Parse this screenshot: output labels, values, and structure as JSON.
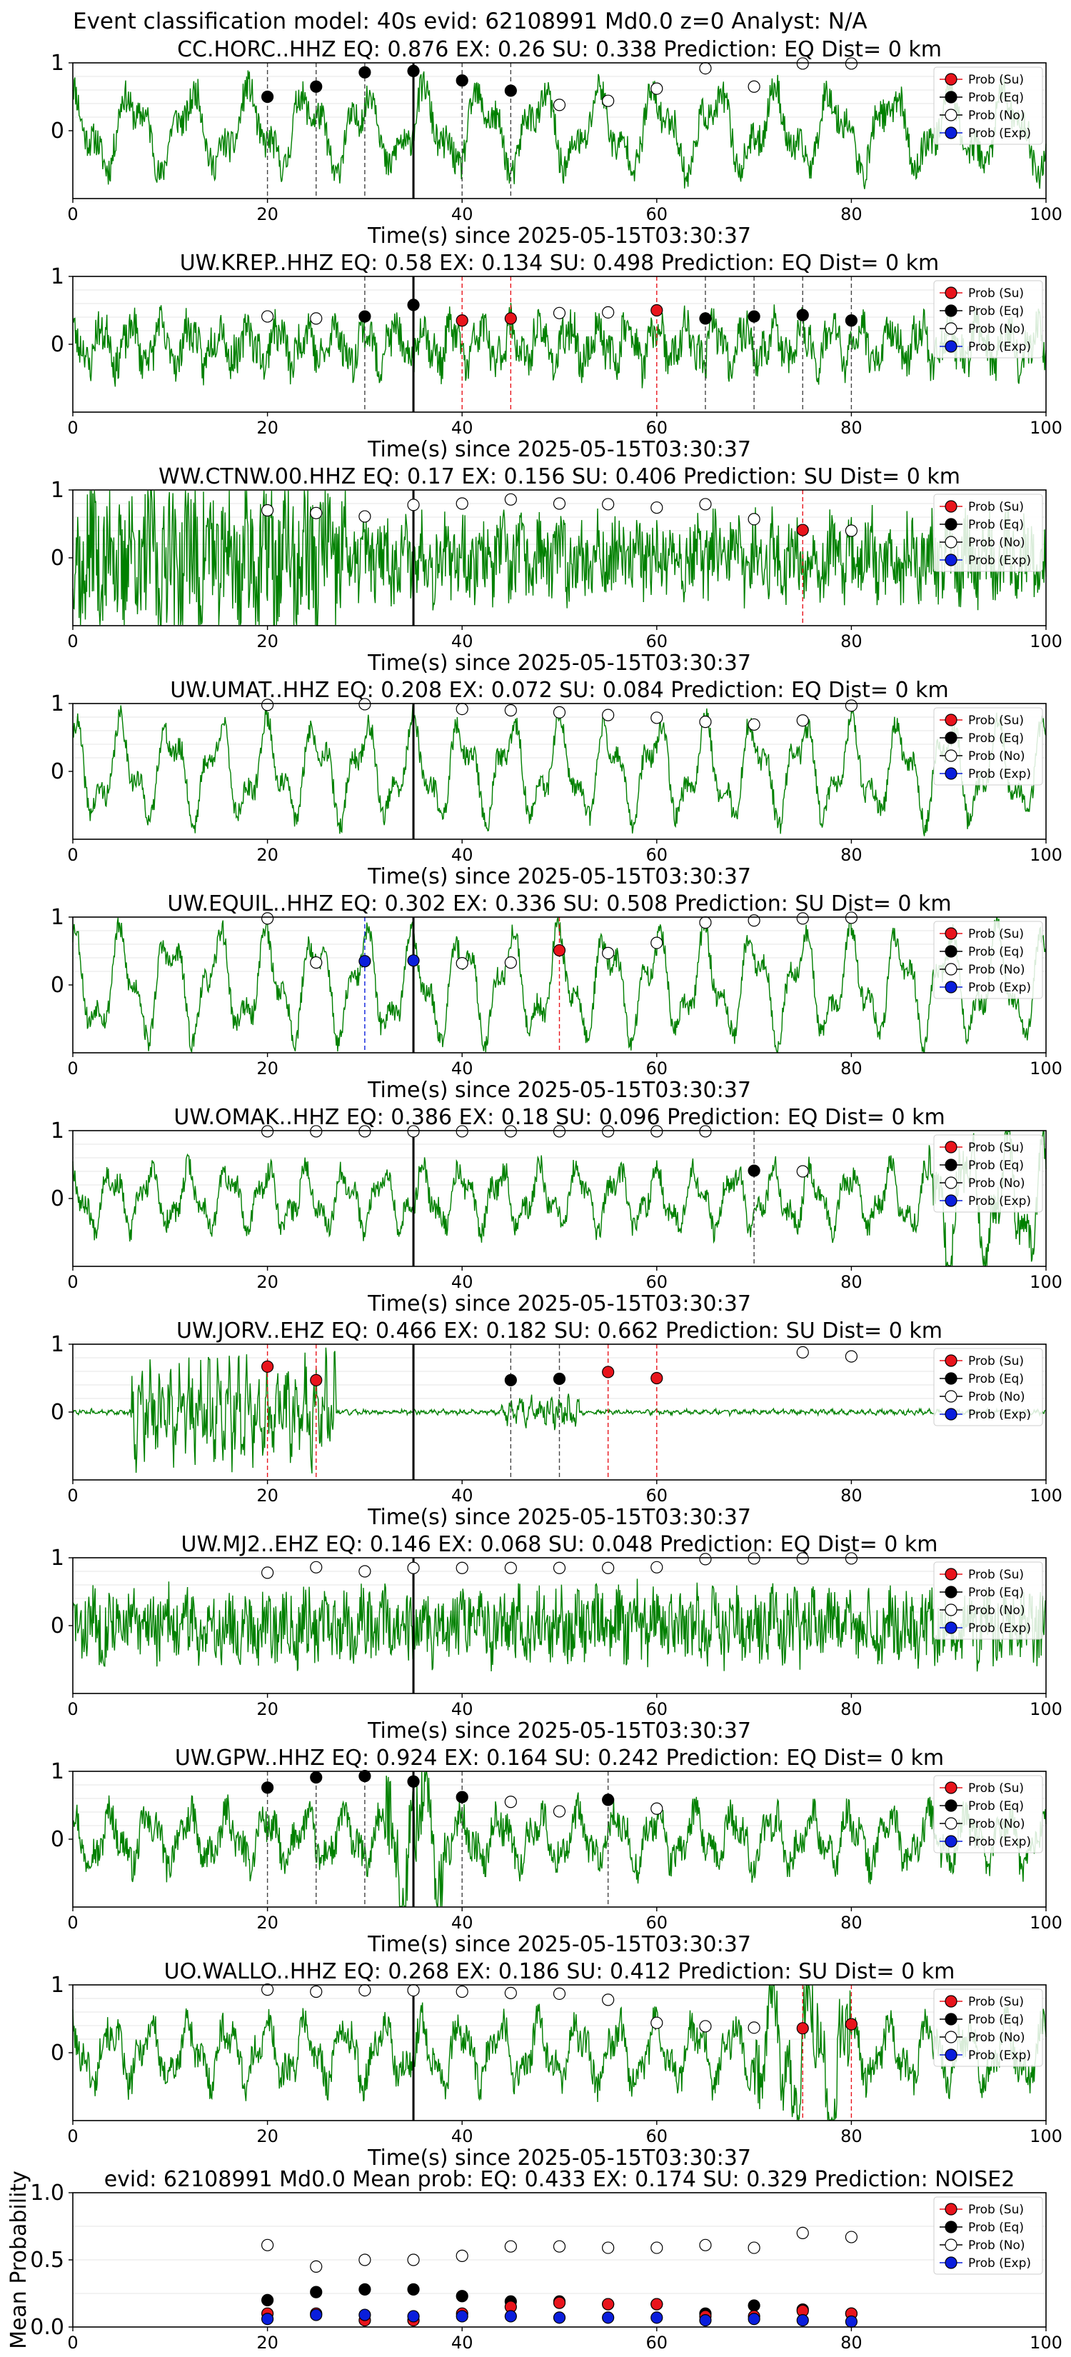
{
  "figure": {
    "suptitle": "Event classification model: 40s evid: 62108991 Md0.0 z=0 Analyst: N/A",
    "xlabel": "Time(s) since 2025-05-15T03:30:37",
    "legend_labels": [
      "Prob (Su)",
      "Prob (Eq)",
      "Prob (No)",
      "Prob (Exp)"
    ],
    "colors": {
      "waveform": "#008000",
      "su": "#e8141c",
      "eq": "#000000",
      "no": "#ffffff",
      "exp": "#0a1edc",
      "axes": "#000000"
    }
  },
  "chart_data": [
    {
      "type": "line",
      "title": "CC.HORC..HHZ   EQ: 0.876  EX: 0.26  SU: 0.338   Prediction: EQ    Dist= 0 km",
      "xlim": [
        0,
        100
      ],
      "ylim": [
        -1,
        1
      ],
      "xticks": [
        0,
        20,
        40,
        60,
        80,
        100
      ],
      "yticks": [
        0,
        1
      ],
      "pick_time": 35,
      "no_points": [
        [
          50,
          0.38
        ],
        [
          55,
          0.44
        ],
        [
          60,
          0.62
        ],
        [
          65,
          0.92
        ],
        [
          70,
          0.65
        ],
        [
          75,
          0.99
        ],
        [
          80,
          0.99
        ]
      ],
      "eq_points": [
        [
          20,
          0.5
        ],
        [
          25,
          0.65
        ],
        [
          30,
          0.86
        ],
        [
          35,
          0.88
        ],
        [
          40,
          0.74
        ],
        [
          45,
          0.59
        ]
      ],
      "su_points": [],
      "exp_points": [],
      "eq_lines": [
        20,
        25,
        30,
        40,
        45
      ],
      "su_lines": [],
      "exp_lines": [],
      "wave": {
        "seed": 11,
        "amp": 0.45,
        "period": 6,
        "noise": 0.3
      }
    },
    {
      "type": "line",
      "title": "UW.KREP..HHZ   EQ: 0.58  EX: 0.134  SU: 0.498   Prediction: EQ    Dist= 0 km",
      "xlim": [
        0,
        100
      ],
      "ylim": [
        -1,
        1
      ],
      "xticks": [
        0,
        20,
        40,
        60,
        80,
        100
      ],
      "yticks": [
        0,
        1
      ],
      "pick_time": 35,
      "no_points": [
        [
          20,
          0.41
        ],
        [
          25,
          0.38
        ],
        [
          50,
          0.46
        ],
        [
          55,
          0.47
        ]
      ],
      "eq_points": [
        [
          30,
          0.41
        ],
        [
          35,
          0.58
        ],
        [
          65,
          0.38
        ],
        [
          70,
          0.41
        ],
        [
          75,
          0.43
        ],
        [
          80,
          0.35
        ]
      ],
      "su_points": [
        [
          40,
          0.35
        ],
        [
          45,
          0.38
        ],
        [
          60,
          0.5
        ]
      ],
      "exp_points": [],
      "eq_lines": [
        30,
        65,
        70,
        75,
        80
      ],
      "su_lines": [
        40,
        45,
        60
      ],
      "exp_lines": [],
      "wave": {
        "seed": 23,
        "amp": 0.25,
        "period": 3,
        "noise": 0.35
      }
    },
    {
      "type": "line",
      "title": "WW.CTNW.00.HHZ   EQ: 0.17  EX: 0.156  SU: 0.406   Prediction: SU    Dist= 0 km",
      "xlim": [
        0,
        100
      ],
      "ylim": [
        -1,
        1
      ],
      "xticks": [
        0,
        20,
        40,
        60,
        80,
        100
      ],
      "yticks": [
        0,
        1
      ],
      "pick_time": 35,
      "no_points": [
        [
          20,
          0.7
        ],
        [
          25,
          0.66
        ],
        [
          30,
          0.61
        ],
        [
          35,
          0.78
        ],
        [
          40,
          0.8
        ],
        [
          45,
          0.86
        ],
        [
          50,
          0.8
        ],
        [
          55,
          0.79
        ],
        [
          60,
          0.74
        ],
        [
          65,
          0.79
        ],
        [
          70,
          0.57
        ],
        [
          80,
          0.4
        ]
      ],
      "eq_points": [],
      "su_points": [
        [
          75,
          0.41
        ]
      ],
      "exp_points": [],
      "eq_lines": [],
      "su_lines": [
        75
      ],
      "exp_lines": [],
      "wave": {
        "seed": 37,
        "amp": 0.2,
        "period": 2,
        "noise": 0.65,
        "burst": [
          0,
          28,
          0.6
        ]
      }
    },
    {
      "type": "line",
      "title": "UW.UMAT..HHZ   EQ: 0.208  EX: 0.072  SU: 0.084   Prediction: EQ    Dist= 0 km",
      "xlim": [
        0,
        100
      ],
      "ylim": [
        -1,
        1
      ],
      "xticks": [
        0,
        20,
        40,
        60,
        80,
        100
      ],
      "yticks": [
        0,
        1
      ],
      "pick_time": 35,
      "no_points": [
        [
          20,
          0.98
        ],
        [
          30,
          0.99
        ],
        [
          40,
          0.92
        ],
        [
          45,
          0.9
        ],
        [
          50,
          0.87
        ],
        [
          55,
          0.83
        ],
        [
          60,
          0.79
        ],
        [
          65,
          0.73
        ],
        [
          70,
          0.69
        ],
        [
          75,
          0.75
        ],
        [
          80,
          0.97
        ]
      ],
      "eq_points": [],
      "su_points": [],
      "exp_points": [],
      "eq_lines": [],
      "su_lines": [],
      "exp_lines": [],
      "wave": {
        "seed": 41,
        "amp": 0.55,
        "period": 5,
        "noise": 0.2
      }
    },
    {
      "type": "line",
      "title": "UW.EQUIL..HHZ   EQ: 0.302  EX: 0.336  SU: 0.508   Prediction: SU    Dist= 0 km",
      "xlim": [
        0,
        100
      ],
      "ylim": [
        -1,
        1
      ],
      "xticks": [
        0,
        20,
        40,
        60,
        80,
        100
      ],
      "yticks": [
        0,
        1
      ],
      "pick_time": 35,
      "no_points": [
        [
          20,
          0.98
        ],
        [
          25,
          0.33
        ],
        [
          40,
          0.32
        ],
        [
          45,
          0.33
        ],
        [
          55,
          0.47
        ],
        [
          60,
          0.62
        ],
        [
          65,
          0.92
        ],
        [
          70,
          0.95
        ],
        [
          75,
          0.98
        ],
        [
          80,
          0.99
        ]
      ],
      "eq_points": [],
      "su_points": [
        [
          50,
          0.51
        ]
      ],
      "exp_points": [
        [
          30,
          0.35
        ],
        [
          35,
          0.36
        ]
      ],
      "eq_lines": [],
      "su_lines": [
        50
      ],
      "exp_lines": [
        30
      ],
      "wave": {
        "seed": 53,
        "amp": 0.6,
        "period": 5,
        "noise": 0.2
      }
    },
    {
      "type": "line",
      "title": "UW.OMAK..HHZ   EQ: 0.386  EX: 0.18  SU: 0.096   Prediction: EQ    Dist= 0 km",
      "xlim": [
        0,
        100
      ],
      "ylim": [
        -1,
        1
      ],
      "xticks": [
        0,
        20,
        40,
        60,
        80,
        100
      ],
      "yticks": [
        0,
        1
      ],
      "pick_time": 35,
      "no_points": [
        [
          20,
          0.99
        ],
        [
          25,
          0.99
        ],
        [
          30,
          0.99
        ],
        [
          35,
          0.99
        ],
        [
          40,
          0.99
        ],
        [
          45,
          0.99
        ],
        [
          50,
          0.99
        ],
        [
          55,
          0.99
        ],
        [
          60,
          0.99
        ],
        [
          65,
          0.99
        ],
        [
          75,
          0.4
        ]
      ],
      "eq_points": [
        [
          70,
          0.41
        ]
      ],
      "su_points": [],
      "exp_points": [],
      "eq_lines": [
        70
      ],
      "su_lines": [],
      "exp_lines": [],
      "wave": {
        "seed": 67,
        "amp": 0.35,
        "period": 4,
        "noise": 0.2,
        "burst": [
          88,
          100,
          0.35
        ]
      }
    },
    {
      "type": "line",
      "title": "UW.JORV..EHZ   EQ: 0.466  EX: 0.182  SU: 0.662   Prediction: SU    Dist= 0 km",
      "xlim": [
        0,
        100
      ],
      "ylim": [
        -1,
        1
      ],
      "xticks": [
        0,
        20,
        40,
        60,
        80,
        100
      ],
      "yticks": [
        0,
        1
      ],
      "pick_time": 35,
      "no_points": [
        [
          75,
          0.88
        ],
        [
          80,
          0.82
        ]
      ],
      "eq_points": [
        [
          45,
          0.47
        ],
        [
          50,
          0.49
        ]
      ],
      "su_points": [
        [
          20,
          0.67
        ],
        [
          25,
          0.47
        ],
        [
          55,
          0.59
        ],
        [
          60,
          0.5
        ]
      ],
      "exp_points": [],
      "eq_lines": [
        45,
        50
      ],
      "su_lines": [
        20,
        25,
        55,
        60
      ],
      "exp_lines": [],
      "wave": {
        "seed": 71,
        "amp": 0.02,
        "period": 1,
        "noise": 0.03,
        "burst": [
          6,
          27,
          0.9
        ],
        "burst2": [
          44,
          52,
          0.25
        ]
      }
    },
    {
      "type": "line",
      "title": "UW.MJ2..EHZ   EQ: 0.146  EX: 0.068  SU: 0.048   Prediction: EQ    Dist= 0 km",
      "xlim": [
        0,
        100
      ],
      "ylim": [
        -1,
        1
      ],
      "xticks": [
        0,
        20,
        40,
        60,
        80,
        100
      ],
      "yticks": [
        0,
        1
      ],
      "pick_time": 35,
      "no_points": [
        [
          20,
          0.78
        ],
        [
          25,
          0.86
        ],
        [
          30,
          0.8
        ],
        [
          35,
          0.85
        ],
        [
          40,
          0.85
        ],
        [
          45,
          0.85
        ],
        [
          50,
          0.85
        ],
        [
          55,
          0.85
        ],
        [
          60,
          0.86
        ],
        [
          65,
          0.98
        ],
        [
          70,
          0.99
        ],
        [
          75,
          0.99
        ],
        [
          80,
          0.99
        ]
      ],
      "eq_points": [],
      "su_points": [],
      "exp_points": [],
      "eq_lines": [],
      "su_lines": [],
      "exp_lines": [],
      "wave": {
        "seed": 83,
        "amp": 0.15,
        "period": 2,
        "noise": 0.6
      }
    },
    {
      "type": "line",
      "title": "UW.GPW..HHZ   EQ: 0.924  EX: 0.164  SU: 0.242   Prediction: EQ    Dist= 0 km",
      "xlim": [
        0,
        100
      ],
      "ylim": [
        -1,
        1
      ],
      "xticks": [
        0,
        20,
        40,
        60,
        80,
        100
      ],
      "yticks": [
        0,
        1
      ],
      "pick_time": 35,
      "no_points": [
        [
          45,
          0.55
        ],
        [
          50,
          0.41
        ],
        [
          60,
          0.45
        ]
      ],
      "eq_points": [
        [
          20,
          0.76
        ],
        [
          25,
          0.91
        ],
        [
          30,
          0.93
        ],
        [
          35,
          0.85
        ],
        [
          40,
          0.62
        ],
        [
          55,
          0.58
        ]
      ],
      "su_points": [],
      "exp_points": [],
      "eq_lines": [
        20,
        25,
        30,
        40,
        55
      ],
      "su_lines": [],
      "exp_lines": [],
      "wave": {
        "seed": 97,
        "amp": 0.3,
        "period": 4,
        "noise": 0.3,
        "burst": [
          32,
          38,
          0.5
        ]
      }
    },
    {
      "type": "line",
      "title": "UO.WALLO..HHZ   EQ: 0.268  EX: 0.186  SU: 0.412   Prediction: SU    Dist= 0 km",
      "xlim": [
        0,
        100
      ],
      "ylim": [
        -1,
        1
      ],
      "xticks": [
        0,
        20,
        40,
        60,
        80,
        100
      ],
      "yticks": [
        0,
        1
      ],
      "pick_time": 35,
      "no_points": [
        [
          20,
          0.93
        ],
        [
          25,
          0.9
        ],
        [
          30,
          0.92
        ],
        [
          35,
          0.92
        ],
        [
          40,
          0.9
        ],
        [
          45,
          0.88
        ],
        [
          50,
          0.87
        ],
        [
          55,
          0.78
        ],
        [
          60,
          0.44
        ],
        [
          65,
          0.39
        ],
        [
          70,
          0.37
        ]
      ],
      "eq_points": [],
      "su_points": [
        [
          75,
          0.36
        ],
        [
          80,
          0.42
        ]
      ],
      "exp_points": [],
      "eq_lines": [],
      "su_lines": [
        75,
        80
      ],
      "exp_lines": [],
      "wave": {
        "seed": 101,
        "amp": 0.35,
        "period": 4,
        "noise": 0.3,
        "burst": [
          70,
          80,
          0.45
        ]
      }
    },
    {
      "type": "scatter",
      "title": "evid: 62108991  Md0.0   Mean prob:   EQ: 0.433  EX: 0.174  SU: 0.329   Prediction: NOISE2",
      "ylabel": "Mean Probability",
      "xlim": [
        0,
        100
      ],
      "ylim": [
        0,
        1
      ],
      "xticks": [
        0,
        20,
        40,
        60,
        80,
        100
      ],
      "yticks": [
        0.0,
        0.5,
        1.0
      ],
      "no_points": [
        [
          20,
          0.61
        ],
        [
          25,
          0.45
        ],
        [
          30,
          0.5
        ],
        [
          35,
          0.5
        ],
        [
          40,
          0.53
        ],
        [
          45,
          0.6
        ],
        [
          50,
          0.6
        ],
        [
          55,
          0.59
        ],
        [
          60,
          0.59
        ],
        [
          65,
          0.61
        ],
        [
          70,
          0.59
        ],
        [
          75,
          0.7
        ],
        [
          80,
          0.67
        ]
      ],
      "eq_points": [
        [
          20,
          0.2
        ],
        [
          25,
          0.26
        ],
        [
          30,
          0.28
        ],
        [
          35,
          0.28
        ],
        [
          40,
          0.23
        ],
        [
          45,
          0.19
        ],
        [
          50,
          0.19
        ],
        [
          55,
          0.17
        ],
        [
          60,
          0.17
        ],
        [
          65,
          0.1
        ],
        [
          70,
          0.16
        ],
        [
          75,
          0.13
        ],
        [
          80,
          0.1
        ]
      ],
      "su_points": [
        [
          20,
          0.1
        ],
        [
          25,
          0.1
        ],
        [
          30,
          0.05
        ],
        [
          35,
          0.05
        ],
        [
          40,
          0.1
        ],
        [
          45,
          0.15
        ],
        [
          50,
          0.18
        ],
        [
          55,
          0.17
        ],
        [
          60,
          0.17
        ],
        [
          65,
          0.08
        ],
        [
          70,
          0.08
        ],
        [
          75,
          0.12
        ],
        [
          80,
          0.1
        ]
      ],
      "exp_points": [
        [
          20,
          0.06
        ],
        [
          25,
          0.09
        ],
        [
          30,
          0.09
        ],
        [
          35,
          0.08
        ],
        [
          40,
          0.08
        ],
        [
          45,
          0.08
        ],
        [
          50,
          0.07
        ],
        [
          55,
          0.07
        ],
        [
          60,
          0.07
        ],
        [
          65,
          0.05
        ],
        [
          70,
          0.06
        ],
        [
          75,
          0.05
        ],
        [
          80,
          0.04
        ]
      ]
    }
  ]
}
